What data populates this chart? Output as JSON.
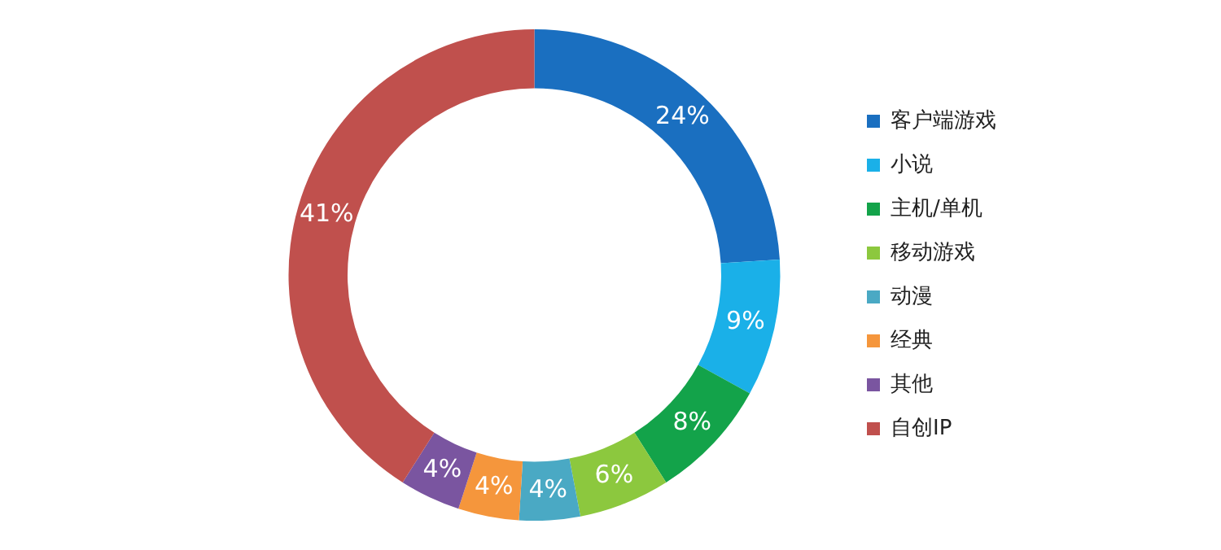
{
  "chart_data": {
    "type": "donut",
    "categories": [
      "客户端游戏",
      "小说",
      "主机/单机",
      "移动游戏",
      "动漫",
      "经典",
      "其他",
      "自创IP"
    ],
    "values": [
      24,
      9,
      8,
      6,
      4,
      4,
      4,
      41
    ],
    "value_labels": [
      "24%",
      "9%",
      "8%",
      "6%",
      "4%",
      "4%",
      "4%",
      "41%"
    ],
    "colors": [
      "#1a6fc0",
      "#1ab0e8",
      "#13a34a",
      "#8cc83e",
      "#4aa9c4",
      "#f5963c",
      "#7a55a0",
      "#c0504d"
    ],
    "legend": "right"
  }
}
